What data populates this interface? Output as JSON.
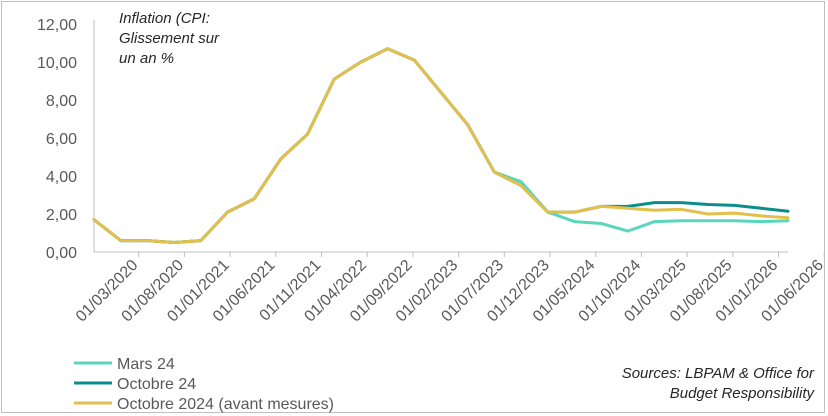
{
  "chart_data": {
    "type": "line",
    "title": "Inflation (CPI: Glissement sur un an %",
    "title_lines": [
      "Inflation (CPI:",
      "Glissement sur",
      "un an %"
    ],
    "source_lines": [
      "Sources: LBPAM & Office for",
      "Budget Responsibility"
    ],
    "xlabel": "",
    "ylabel": "",
    "ylim": [
      0,
      12
    ],
    "yticks": [
      "0,00",
      "2,00",
      "4,00",
      "6,00",
      "8,00",
      "10,00",
      "12,00"
    ],
    "x_tick_labels": [
      "01/03/2020",
      "01/08/2020",
      "01/01/2021",
      "01/06/2021",
      "01/11/2021",
      "01/04/2022",
      "01/09/2022",
      "01/02/2023",
      "01/07/2023",
      "01/12/2023",
      "01/05/2024",
      "01/10/2024",
      "01/03/2025",
      "01/08/2025",
      "01/01/2026",
      "01/06/2026"
    ],
    "x_index_range": [
      0,
      31
    ],
    "legend_position": "bottom-left",
    "series": [
      {
        "name": "Mars 24",
        "color": "#5ad6bc",
        "values": [
          1.7,
          0.6,
          0.6,
          0.5,
          0.6,
          2.1,
          2.8,
          4.9,
          6.2,
          9.1,
          10.0,
          10.7,
          10.1,
          8.4,
          6.7,
          4.2,
          3.7,
          2.1,
          1.6,
          1.5,
          1.1,
          1.6,
          1.65,
          1.65,
          1.65,
          1.6,
          1.65
        ]
      },
      {
        "name": "Octobre 24",
        "color": "#0e8c8c",
        "values": [
          1.7,
          0.6,
          0.6,
          0.5,
          0.6,
          2.1,
          2.8,
          4.9,
          6.2,
          9.1,
          10.0,
          10.7,
          10.1,
          8.4,
          6.7,
          4.2,
          3.5,
          2.1,
          2.1,
          2.4,
          2.4,
          2.6,
          2.6,
          2.5,
          2.45,
          2.3,
          2.15
        ]
      },
      {
        "name": "Octobre 2024 (avant mesures)",
        "color": "#e3c04b",
        "values": [
          1.7,
          0.6,
          0.6,
          0.5,
          0.6,
          2.1,
          2.8,
          4.9,
          6.2,
          9.1,
          10.0,
          10.7,
          10.1,
          8.4,
          6.7,
          4.2,
          3.5,
          2.1,
          2.1,
          2.4,
          2.3,
          2.2,
          2.25,
          2.0,
          2.05,
          1.9,
          1.8
        ]
      }
    ]
  }
}
